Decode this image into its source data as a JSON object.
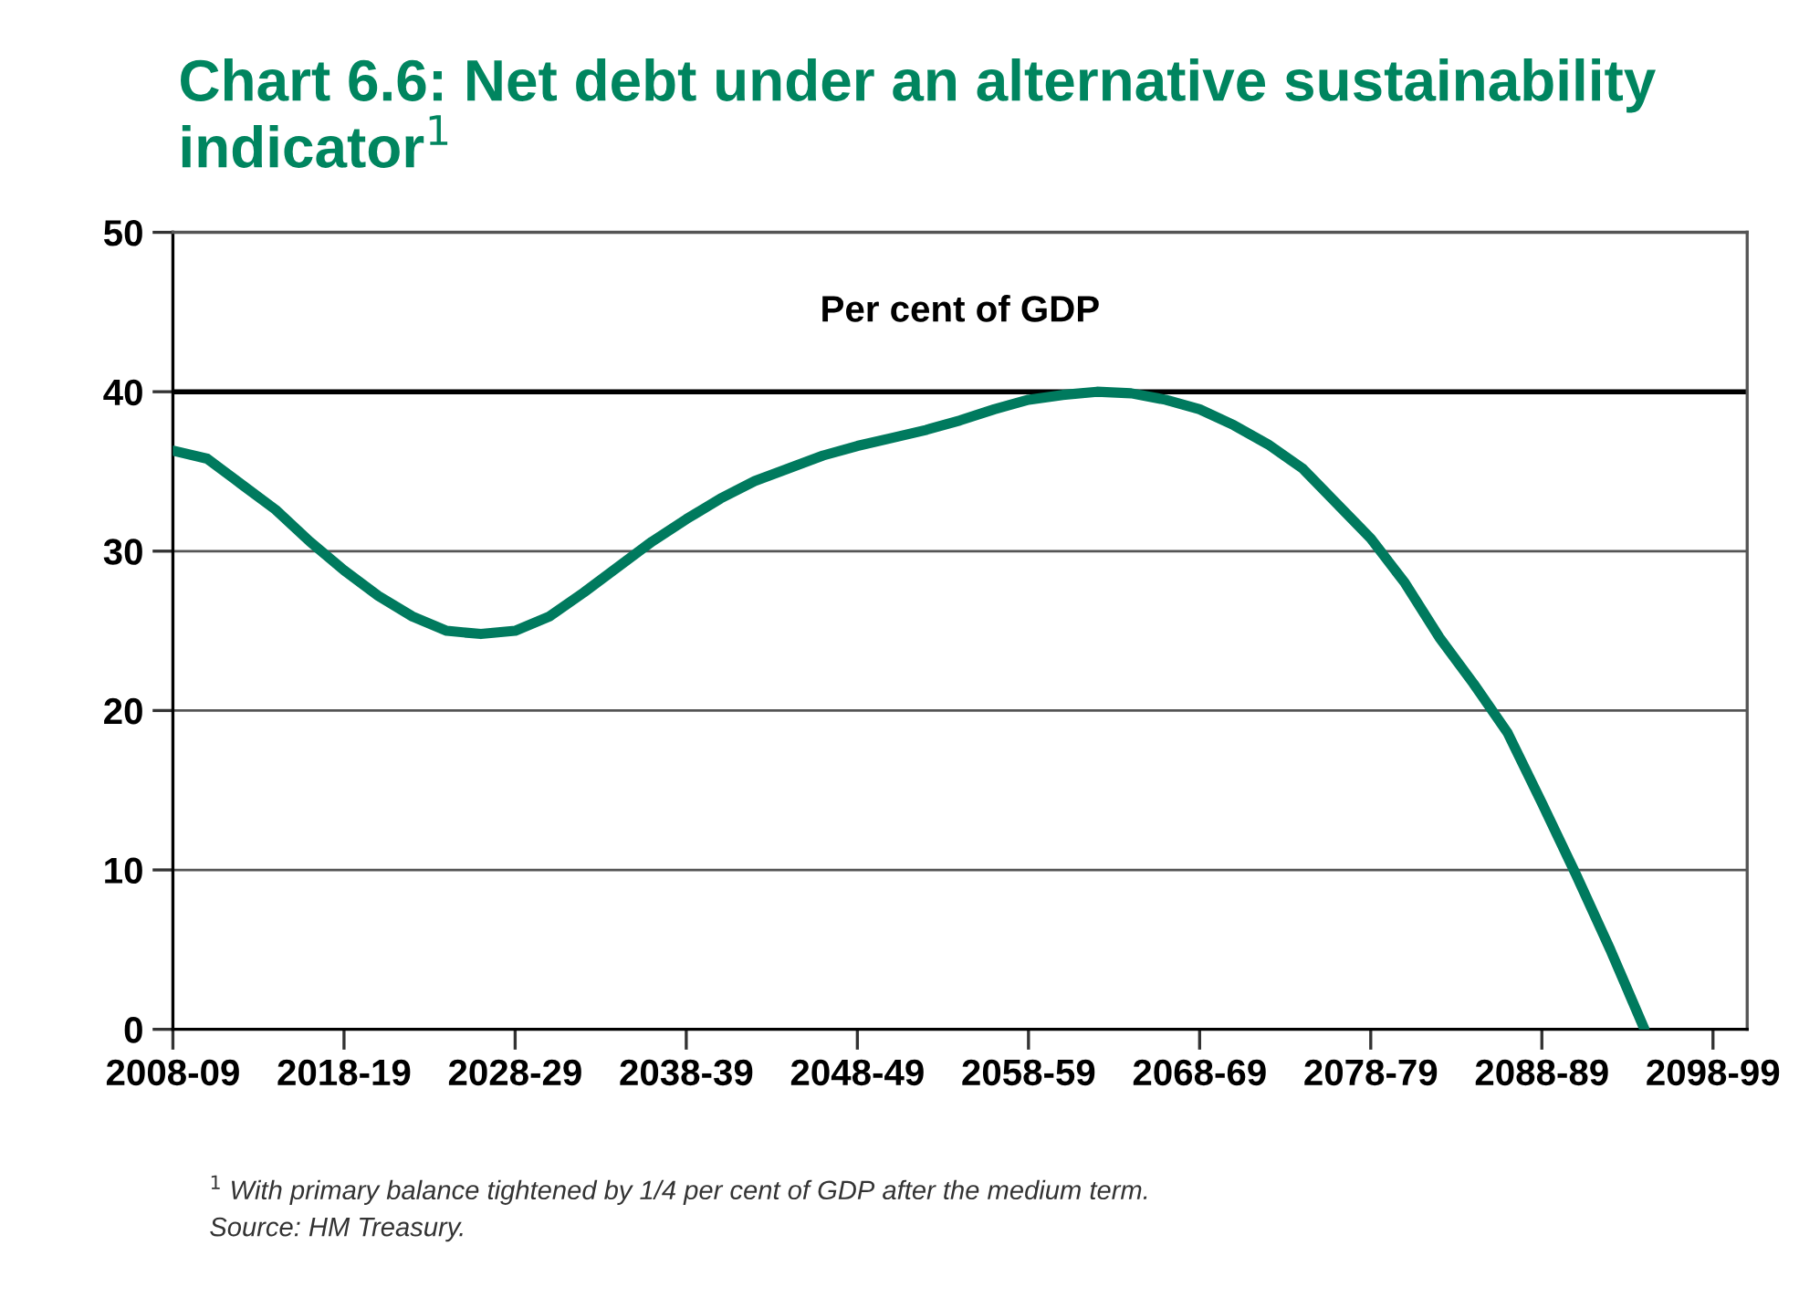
{
  "chart_data": {
    "type": "line",
    "title": "Chart 6.6: Net debt under an alternative sustainability indicator$^{1}$",
    "ylabel": "Per cent of GDP",
    "categories": [
      "2008-09",
      null,
      null,
      null,
      null,
      "2018-19",
      null,
      null,
      null,
      null,
      "2028-29",
      null,
      null,
      null,
      null,
      "2038-39",
      null,
      null,
      null,
      null,
      "2048-49",
      null,
      null,
      null,
      null,
      "2058-59",
      null,
      null,
      null,
      null,
      "2068-69",
      null,
      null,
      null,
      null,
      "2078-79",
      null,
      null,
      null,
      null,
      "2088-89",
      null,
      null,
      null,
      null,
      "2098-99",
      null
    ],
    "series": [
      {
        "color": "#007a5e",
        "values": [
          36.3,
          35.8,
          34.2,
          32.6,
          30.6,
          28.8,
          27.2,
          25.9,
          25.0,
          24.8,
          25.0,
          25.9,
          27.4,
          29.0,
          30.6,
          32.0,
          33.3,
          34.4,
          35.2,
          36.0,
          36.6,
          37.1,
          37.6,
          38.2,
          38.9,
          39.5,
          39.8,
          40.0,
          39.9,
          39.5,
          38.9,
          37.9,
          36.7,
          35.2,
          33.0,
          30.8,
          28.0,
          24.6,
          21.7,
          18.6,
          14.2,
          9.7,
          5.0,
          0.0,
          null,
          null,
          null
        ]
      }
    ],
    "ylim": [
      0,
      50
    ],
    "yticks": [
      0,
      10,
      20,
      30,
      40,
      50
    ],
    "grid": "y",
    "ref_lines": [
      {
        "axis": "y",
        "value": 40,
        "color": "#000000"
      }
    ],
    "marker": "none",
    "line_style": "solid",
    "annotations": [
      "$^{1}$ With primary balance tightened by 1/4 per cent of GDP after the medium term.",
      "Source: HM Treasury."
    ]
  }
}
